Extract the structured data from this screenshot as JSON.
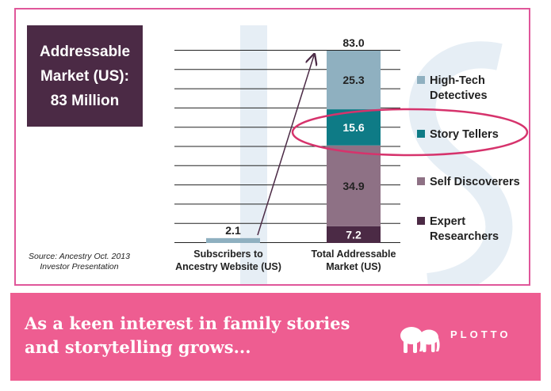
{
  "header_box": {
    "lines": [
      "Addressable",
      "Market (US):",
      "83 Million"
    ]
  },
  "source": {
    "lines": [
      "Source: Ancestry Oct. 2013",
      "Investor Presentation"
    ]
  },
  "chart_data": {
    "type": "bar",
    "stacked": true,
    "categories": [
      "Subscribers to Ancestry Website (US)",
      "Total Addressable Market (US)"
    ],
    "category_label_lines": [
      [
        "Subscribers to",
        "Ancestry Website (US)"
      ],
      [
        "Total Addressable",
        "Market (US)"
      ]
    ],
    "series": [
      {
        "name": "Expert Researchers",
        "label_lines": [
          "Expert",
          "Researchers"
        ],
        "color": "#4b2a45",
        "values": [
          0,
          7.2
        ]
      },
      {
        "name": "Self Discoverers",
        "label_lines": [
          "Self Discoverers"
        ],
        "color": "#8e7185",
        "values": [
          0,
          34.9
        ]
      },
      {
        "name": "Story Tellers",
        "label_lines": [
          "Story Tellers"
        ],
        "color": "#0e7b86",
        "values": [
          0,
          15.6
        ]
      },
      {
        "name": "High-Tech Detectives",
        "label_lines": [
          "High-Tech",
          "Detectives"
        ],
        "color": "#8fb0c0",
        "values": [
          0,
          25.3
        ]
      },
      {
        "name": "Subscribers",
        "label_lines": [],
        "color": "#8fb0c0",
        "values": [
          2.1,
          0
        ]
      }
    ],
    "totals": [
      2.1,
      83.0
    ],
    "total_labels": [
      "2.1",
      "83.0"
    ],
    "segment_labels": [
      "7.2",
      "34.9",
      "15.6",
      "25.3"
    ],
    "ylim": [
      0,
      83
    ],
    "grid": true,
    "legend_position": "right",
    "annotations": [
      "arrow from subscribers bar to total bar",
      "circle highlighting Story Tellers"
    ],
    "highlight_color": "#d6336c"
  },
  "banner": {
    "text_lines": [
      "As a keen interest in family stories",
      "and storytelling grows..."
    ],
    "brand": "PLOTTO",
    "logo_icon": "elephants-logo-icon",
    "color": "#ee5d91"
  }
}
